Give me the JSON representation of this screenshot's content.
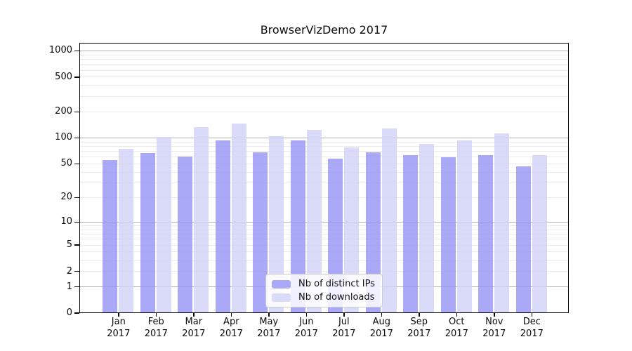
{
  "chart_data": {
    "type": "bar",
    "title": "BrowserVizDemo 2017",
    "categories": [
      "Jan 2017",
      "Feb 2017",
      "Mar 2017",
      "Apr 2017",
      "May 2017",
      "Jun 2017",
      "Jul 2017",
      "Aug 2017",
      "Sep 2017",
      "Oct 2017",
      "Nov 2017",
      "Dec 2017"
    ],
    "series": [
      {
        "name": "Nb of distinct IPs",
        "color": "#a9a9f8",
        "values": [
          55,
          66,
          60,
          92,
          68,
          92,
          57,
          68,
          62,
          59,
          63,
          46
        ]
      },
      {
        "name": "Nb of downloads",
        "color": "#dadaf9",
        "values": [
          74,
          102,
          132,
          144,
          104,
          122,
          77,
          128,
          84,
          93,
          111,
          63
        ]
      }
    ],
    "xlabel": "",
    "ylabel": "",
    "yscale": "log10(value+1)",
    "yticks": [
      0,
      1,
      2,
      5,
      10,
      20,
      50,
      100,
      200,
      500,
      1000
    ],
    "ylim": [
      0,
      1100
    ],
    "grid": true,
    "grid_major_color": "#b2b2b2",
    "grid_minor_color": "#ececec",
    "legend": {
      "position": "inside-bottom-center",
      "entries": [
        "Nb of distinct IPs",
        "Nb of downloads"
      ]
    }
  }
}
